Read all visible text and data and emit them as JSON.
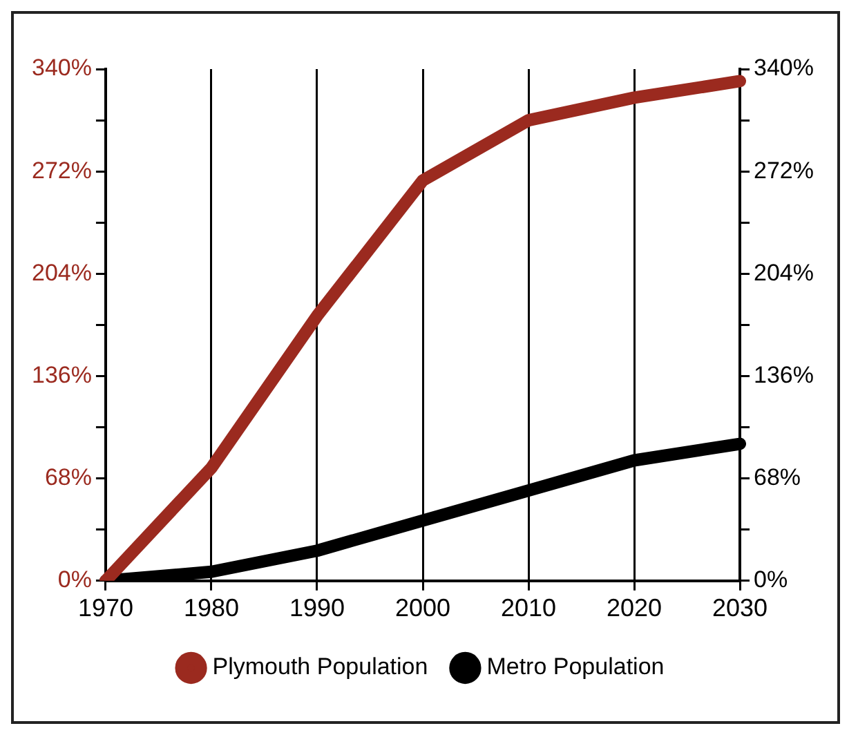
{
  "chart_data": {
    "type": "line",
    "categories": [
      "1970",
      "1980",
      "1990",
      "2000",
      "2010",
      "2020",
      "2030"
    ],
    "series": [
      {
        "name": "Plymouth Population",
        "color": "#9b2a1f",
        "values": [
          0,
          75,
          176,
          266,
          306,
          321,
          332
        ]
      },
      {
        "name": "Metro Population",
        "color": "#000000",
        "values": [
          0,
          6,
          20,
          40,
          60,
          80,
          91
        ]
      }
    ],
    "ylim": [
      0,
      340
    ],
    "yticks": [
      {
        "value": 0,
        "label": "0%"
      },
      {
        "value": 34,
        "label": null
      },
      {
        "value": 68,
        "label": "68%"
      },
      {
        "value": 102,
        "label": null
      },
      {
        "value": 136,
        "label": "136%"
      },
      {
        "value": 170,
        "label": null
      },
      {
        "value": 204,
        "label": "204%"
      },
      {
        "value": 238,
        "label": null
      },
      {
        "value": 272,
        "label": "272%"
      },
      {
        "value": 306,
        "label": null
      },
      {
        "value": 340,
        "label": "340%"
      }
    ],
    "y2lim": [
      0,
      340
    ],
    "y2ticks": [
      {
        "value": 0,
        "label": "0%"
      },
      {
        "value": 34,
        "label": null
      },
      {
        "value": 68,
        "label": "68%"
      },
      {
        "value": 102,
        "label": null
      },
      {
        "value": 136,
        "label": "136%"
      },
      {
        "value": 170,
        "label": null
      },
      {
        "value": 204,
        "label": "204%"
      },
      {
        "value": 238,
        "label": null
      },
      {
        "value": 272,
        "label": "272%"
      },
      {
        "value": 306,
        "label": null
      },
      {
        "value": 340,
        "label": "340%"
      }
    ],
    "grid": "x",
    "legend": "bottom",
    "marker": "none",
    "line_style": "solid"
  }
}
